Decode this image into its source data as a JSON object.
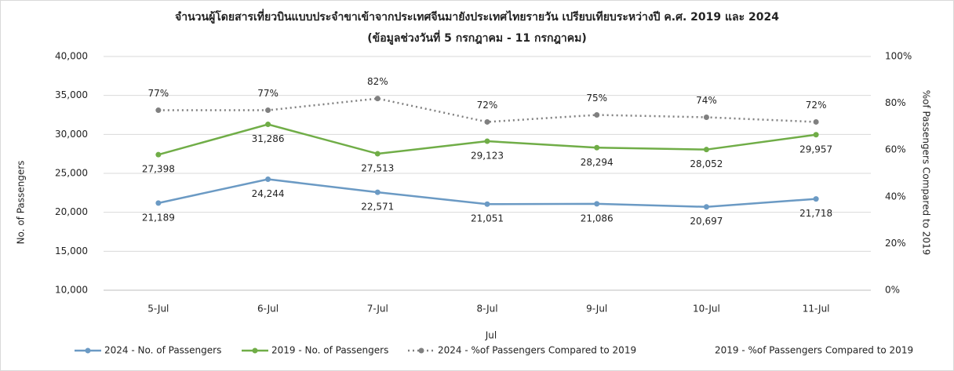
{
  "chart_data": {
    "type": "line",
    "title": "จำนวนผู้โดยสารเที่ยวบินแบบประจำขาเข้าจากประเทศจีนมายังประเทศไทยรายวัน เปรียบเทียบระหว่างปี ค.ศ. 2019 และ 2024",
    "subtitle": "(ข้อมูลช่วงวันที่ 5 กรกฎาคม - 11 กรกฎาคม)",
    "x_label": "Jul",
    "y_label": "No. of Passengers",
    "y2_label": "%of Passengers Compared to 2019",
    "categories": [
      "5-Jul",
      "6-Jul",
      "7-Jul",
      "8-Jul",
      "9-Jul",
      "10-Jul",
      "11-Jul"
    ],
    "series": [
      {
        "name": "2024 - No. of Passengers",
        "color": "#6b9ac4",
        "values": [
          21189,
          24244,
          22571,
          21051,
          21086,
          20697,
          21718
        ],
        "value_labels": [
          "21,189",
          "24,244",
          "22,571",
          "21,051",
          "21,086",
          "20,697",
          "21,718"
        ]
      },
      {
        "name": "2019 - No. of Passengers",
        "color": "#70ad47",
        "values": [
          27398,
          31286,
          27513,
          29123,
          28294,
          28052,
          29957
        ],
        "value_labels": [
          "27,398",
          "31,286",
          "27,513",
          "29,123",
          "28,294",
          "28,052",
          "29,957"
        ]
      },
      {
        "name": "2024 - %of Passengers Compared to 2019",
        "color": "#808080",
        "dash": true,
        "axis": "y2",
        "values": [
          77,
          77,
          82,
          72,
          75,
          74,
          72
        ],
        "value_labels": [
          "77%",
          "77%",
          "82%",
          "72%",
          "75%",
          "74%",
          "72%"
        ]
      },
      {
        "name": "2019 - %of Passengers Compared to 2019",
        "color": "none",
        "axis": "y2",
        "values": [
          null,
          null,
          null,
          null,
          null,
          null,
          null
        ]
      }
    ],
    "ylim": [
      10000,
      40000
    ],
    "yticks": [
      {
        "value": 10000,
        "label": "10,000"
      },
      {
        "value": 15000,
        "label": "15,000"
      },
      {
        "value": 20000,
        "label": "20,000"
      },
      {
        "value": 25000,
        "label": "25,000"
      },
      {
        "value": 30000,
        "label": "30,000"
      },
      {
        "value": 35000,
        "label": "35,000"
      },
      {
        "value": 40000,
        "label": "40,000"
      }
    ],
    "y2lim": [
      0,
      100
    ],
    "y2ticks": [
      {
        "value": 0,
        "label": "0%"
      },
      {
        "value": 20,
        "label": "20%"
      },
      {
        "value": 40,
        "label": "40%"
      },
      {
        "value": 60,
        "label": "60%"
      },
      {
        "value": 80,
        "label": "80%"
      },
      {
        "value": 100,
        "label": "100%"
      }
    ],
    "grid": true,
    "legend": "bottom"
  }
}
